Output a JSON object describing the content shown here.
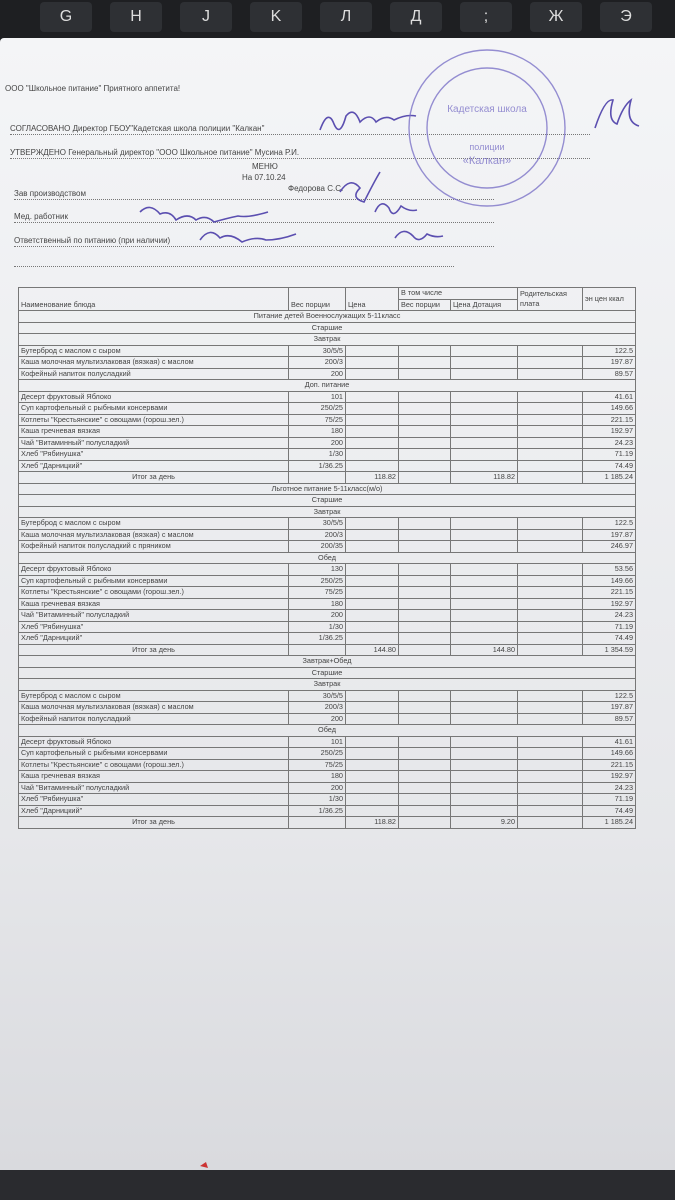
{
  "keyboard": [
    "G",
    "H",
    "J",
    "K",
    "Л",
    "Д",
    ";",
    "Ж",
    "Э"
  ],
  "header": {
    "company": "ООО \"Школьное питание\" Приятного аппетита!",
    "agreed": "СОГЛАСОВАНО  Директор ГБОУ\"Кадетская школа полиции \"Калкан\"",
    "approved": "УТВЕРЖДЕНО  Генеральный директор \"ООО Школьное питание\" Мусина Р.И.",
    "menu": "МЕНЮ",
    "date": "На 07.10.24",
    "production_head": "Зав производством",
    "production_name": "Федорова С.С.",
    "medic": "Мед. работник",
    "responsible": "Ответственный по питанию (при наличии)"
  },
  "stamp": {
    "line1": "Кадетская школа",
    "line2": "полиции",
    "line3": "«Калкан»"
  },
  "table": {
    "head": {
      "name": "Наименование блюда",
      "weight": "Вес порции",
      "price": "Цена",
      "including": "В том числе",
      "inc_weight": "Вес порции",
      "inc_price": "Цена Дотация",
      "parent": "Родительская плата",
      "kcal": "эн цен ккал"
    },
    "sections": [
      {
        "title": "Питание детей Военнослужащих 5-11класс",
        "group": "Старшие",
        "blocks": [
          {
            "meal": "Завтрак",
            "rows": [
              {
                "name": "Бутерброд с маслом с сыром",
                "weight": "30/5/5",
                "kcal": "122.5"
              },
              {
                "name": "Каша молочная мультизлаковая (вязкая) с маслом",
                "weight": "200/3",
                "kcal": "197.87"
              },
              {
                "name": "Кофейный напиток полусладкий",
                "weight": "200",
                "kcal": "89.57"
              }
            ]
          },
          {
            "meal": "Доп. питание",
            "rows": [
              {
                "name": "Десерт фруктовый Яблоко",
                "weight": "101",
                "kcal": "41.61"
              },
              {
                "name": "Суп картофельный с рыбными консервами",
                "weight": "250/25",
                "kcal": "149.66"
              },
              {
                "name": "Котлеты \"Крестьянские\" с овощами (горош.зел.)",
                "weight": "75/25",
                "kcal": "221.15"
              },
              {
                "name": "Каша гречневая вязкая",
                "weight": "180",
                "kcal": "192.97"
              },
              {
                "name": "Чай \"Витаминный\" полусладкий",
                "weight": "200",
                "kcal": "24.23"
              },
              {
                "name": "Хлеб \"Рябинушка\"",
                "weight": "1/30",
                "kcal": "71.19"
              },
              {
                "name": "Хлеб \"Дарницкий\"",
                "weight": "1/36.25",
                "kcal": "74.49"
              }
            ]
          }
        ],
        "total": {
          "label": "Итог за день",
          "price": "118.82",
          "dotation": "118.82",
          "kcal": "1 185.24"
        }
      },
      {
        "title": "Льготное питание 5-11класс(м/о)",
        "group": "Старшие",
        "blocks": [
          {
            "meal": "Завтрак",
            "rows": [
              {
                "name": "Бутерброд с маслом с сыром",
                "weight": "30/5/5",
                "kcal": "122.5"
              },
              {
                "name": "Каша молочная мультизлаковая (вязкая) с маслом",
                "weight": "200/3",
                "kcal": "197.87"
              },
              {
                "name": "Кофейный напиток полусладкий с пряником",
                "weight": "200/35",
                "kcal": "246.97"
              }
            ]
          },
          {
            "meal": "Обед",
            "rows": [
              {
                "name": "Десерт фруктовый Яблоко",
                "weight": "130",
                "kcal": "53.56"
              },
              {
                "name": "Суп картофельный с рыбными консервами",
                "weight": "250/25",
                "kcal": "149.66"
              },
              {
                "name": "Котлеты \"Крестьянские\" с овощами (горош.зел.)",
                "weight": "75/25",
                "kcal": "221.15"
              },
              {
                "name": "Каша гречневая вязкая",
                "weight": "180",
                "kcal": "192.97"
              },
              {
                "name": "Чай \"Витаминный\" полусладкий",
                "weight": "200",
                "kcal": "24.23"
              },
              {
                "name": "Хлеб \"Рябинушка\"",
                "weight": "1/30",
                "kcal": "71.19"
              },
              {
                "name": "Хлеб \"Дарницкий\"",
                "weight": "1/36.25",
                "kcal": "74.49"
              }
            ]
          }
        ],
        "total": {
          "label": "Итог за день",
          "price": "144.80",
          "dotation": "144.80",
          "kcal": "1 354.59"
        }
      },
      {
        "title": "Завтрак+Обед",
        "group": "Старшие",
        "blocks": [
          {
            "meal": "Завтрак",
            "rows": [
              {
                "name": "Бутерброд с маслом с сыром",
                "weight": "30/5/5",
                "kcal": "122.5"
              },
              {
                "name": "Каша молочная мультизлаковая (вязкая) с маслом",
                "weight": "200/3",
                "kcal": "197.87"
              },
              {
                "name": "Кофейный напиток полусладкий",
                "weight": "200",
                "kcal": "89.57"
              }
            ]
          },
          {
            "meal": "Обед",
            "rows": [
              {
                "name": "Десерт фруктовый Яблоко",
                "weight": "101",
                "kcal": "41.61"
              },
              {
                "name": "Суп картофельный с рыбными консервами",
                "weight": "250/25",
                "kcal": "149.66"
              },
              {
                "name": "Котлеты \"Крестьянские\" с овощами (горош.зел.)",
                "weight": "75/25",
                "kcal": "221.15"
              },
              {
                "name": "Каша гречневая вязкая",
                "weight": "180",
                "kcal": "192.97"
              },
              {
                "name": "Чай \"Витаминный\" полусладкий",
                "weight": "200",
                "kcal": "24.23"
              },
              {
                "name": "Хлеб \"Рябинушка\"",
                "weight": "1/30",
                "kcal": "71.19"
              },
              {
                "name": "Хлеб \"Дарницкий\"",
                "weight": "1/36.25",
                "kcal": "74.49"
              }
            ]
          }
        ],
        "total": {
          "label": "Итог за день",
          "price": "118.82",
          "dotation": "9.20",
          "kcal": "1 185.24"
        }
      }
    ]
  }
}
